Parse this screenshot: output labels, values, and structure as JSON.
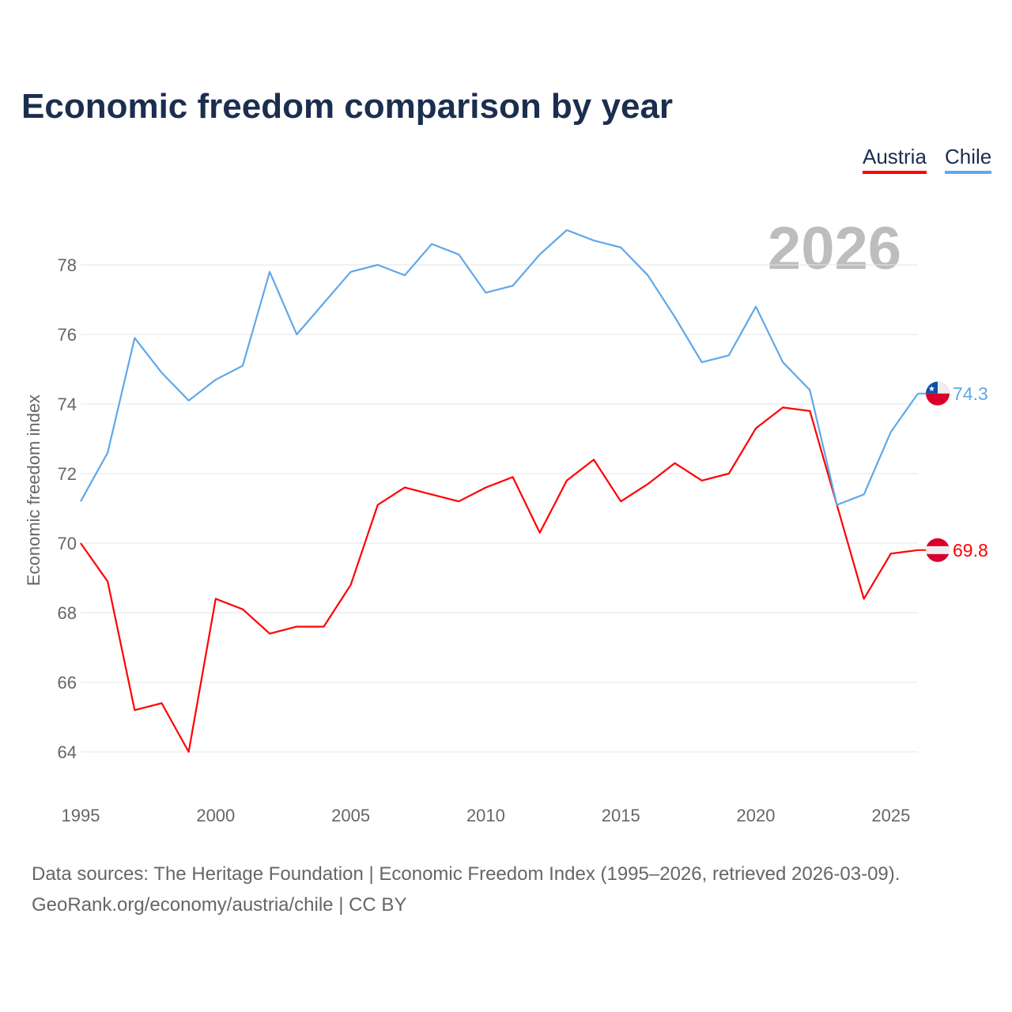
{
  "chart_data": {
    "type": "line",
    "title": "Economic freedom comparison by year",
    "ylabel": "Economic freedom index",
    "xlabel": "",
    "year_watermark": "2026",
    "ylim": [
      63,
      80
    ],
    "xlim": [
      1995,
      2026
    ],
    "yticks": [
      64,
      66,
      68,
      70,
      72,
      74,
      76,
      78
    ],
    "xticks": [
      1995,
      2000,
      2005,
      2010,
      2015,
      2020,
      2025
    ],
    "grid": true,
    "legend_placement": "top-right",
    "x": [
      1995,
      1996,
      1997,
      1998,
      1999,
      2000,
      2001,
      2002,
      2003,
      2004,
      2005,
      2006,
      2007,
      2008,
      2009,
      2010,
      2011,
      2012,
      2013,
      2014,
      2015,
      2016,
      2017,
      2018,
      2019,
      2020,
      2021,
      2022,
      2023,
      2024,
      2025,
      2026
    ],
    "series": [
      {
        "name": "Austria",
        "color": "#ff0000",
        "end_label": "69.8",
        "values": [
          70.0,
          68.9,
          65.2,
          65.4,
          64.0,
          68.4,
          68.1,
          67.4,
          67.6,
          67.6,
          68.8,
          71.1,
          71.6,
          71.4,
          71.2,
          71.6,
          71.9,
          70.3,
          71.8,
          72.4,
          71.2,
          71.7,
          72.3,
          71.8,
          72.0,
          73.3,
          73.9,
          73.8,
          71.1,
          68.4,
          69.7,
          69.8
        ]
      },
      {
        "name": "Chile",
        "color": "#5fa8ea",
        "end_label": "74.3",
        "values": [
          71.2,
          72.6,
          75.9,
          74.9,
          74.1,
          74.7,
          75.1,
          77.8,
          76.0,
          76.9,
          77.8,
          78.0,
          77.7,
          78.6,
          78.3,
          77.2,
          77.4,
          78.3,
          79.0,
          78.7,
          78.5,
          77.7,
          76.5,
          75.2,
          75.4,
          76.8,
          75.2,
          74.4,
          71.1,
          71.4,
          73.2,
          74.3
        ]
      }
    ]
  },
  "footer": {
    "line1": "Data sources: The Heritage Foundation | Economic Freedom Index (1995–2026, retrieved 2026-03-09).",
    "line2": "GeoRank.org/economy/austria/chile | CC BY"
  }
}
